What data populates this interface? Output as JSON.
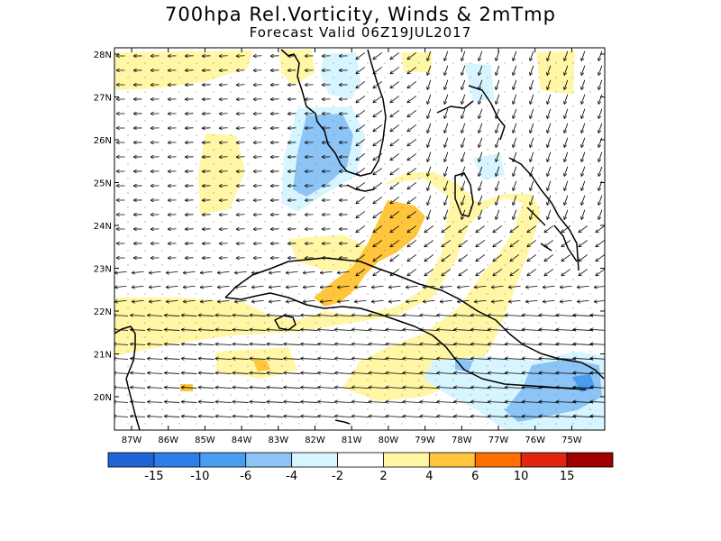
{
  "title": "700hpa Rel.Vorticity, Winds & 2mTmp",
  "subtitle": "Forecast Valid  06Z19JUL2017",
  "lat_labels": [
    "28N",
    "27N",
    "26N",
    "25N",
    "24N",
    "23N",
    "22N",
    "21N",
    "20N"
  ],
  "lon_labels": [
    "87W",
    "86W",
    "85W",
    "84W",
    "83W",
    "82W",
    "81W",
    "80W",
    "79W",
    "78W",
    "77W",
    "76W",
    "75W"
  ],
  "colorbar": {
    "labels": [
      "-15",
      "-10",
      "-6",
      "-4",
      "-2",
      "2",
      "4",
      "6",
      "10",
      "15"
    ],
    "colors": [
      "#1e64d6",
      "#2c7fe8",
      "#4a9cf0",
      "#8cc4f6",
      "#d6f5ff",
      "#ffffff",
      "#fff7a6",
      "#ffc53c",
      "#ff6e00",
      "#e0260e",
      "#a00000"
    ]
  },
  "map_colors": {
    "light_yellow": "#fff7a6",
    "orange": "#ffc53c",
    "light_blue": "#d6f5ff",
    "mid_blue": "#8cc4f6",
    "blue": "#4a9cf0",
    "coastline": "#000000"
  }
}
